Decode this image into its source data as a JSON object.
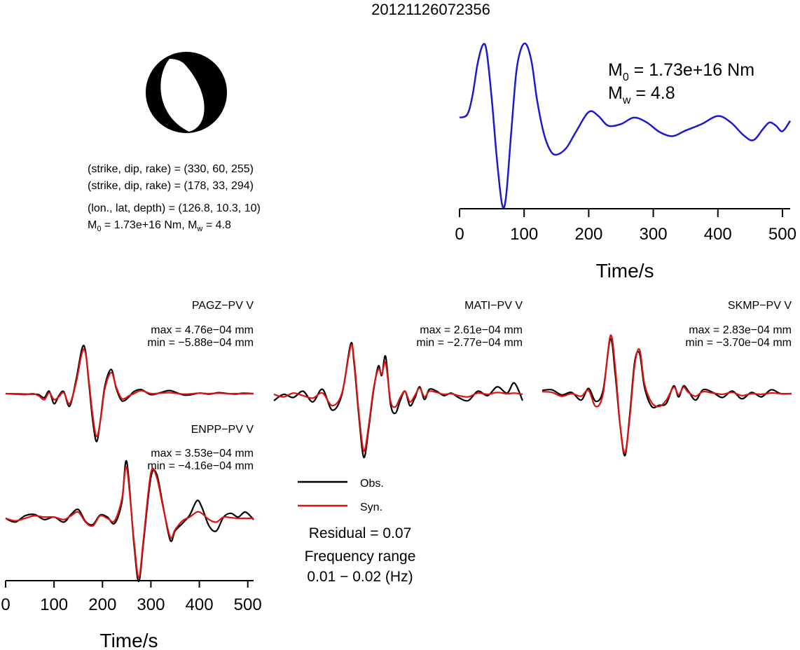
{
  "title": "20121126072356",
  "colors": {
    "observed": "#000000",
    "synthetic": "#dd1111",
    "stf": "#1a1ad0",
    "axis": "#000000"
  },
  "mechanism": {
    "plane1": "(strike, dip, rake) = (330, 60, 255)",
    "plane2": "(strike, dip, rake) = (178, 33, 294)",
    "location": "(lon., lat, depth) = (126.8, 10.3, 10)",
    "moment_prefix": "M",
    "moment_sub": "0",
    "moment_value": " = 1.73e+16 Nm, M",
    "mw_sub": "w",
    "mw_value": " = 4.8"
  },
  "stf": {
    "m0_prefix": "M",
    "m0_sub": "0",
    "m0_value": " = 1.73e+16 Nm",
    "mw_prefix": "M",
    "mw_sub": "w",
    "mw_value": " = 4.8",
    "xlabel": "Time/s"
  },
  "legend": {
    "obs": "Obs.",
    "syn": "Syn.",
    "residual": "Residual = 0.07",
    "freq_label": "Frequency range",
    "freq_value": "0.01 − 0.02 (Hz)"
  },
  "stations": [
    {
      "name": "PAGZ−PV V",
      "max": "max = 4.76e−04 mm",
      "min": "min = −5.88e−04 mm"
    },
    {
      "name": "MATI−PV V",
      "max": "max = 2.61e−04 mm",
      "min": "min = −2.77e−04 mm"
    },
    {
      "name": "SKMP−PV V",
      "max": "max = 2.83e−04 mm",
      "min": "min = −3.70e−04 mm"
    },
    {
      "name": "ENPP−PV V",
      "max": "max = 3.53e−04 mm",
      "min": "min = −4.16e−04 mm"
    }
  ],
  "wave_axis": {
    "xlabel": "Time/s"
  },
  "chart_data": [
    {
      "type": "line",
      "title": "",
      "xlabel": "Time/s",
      "xlim": [
        0,
        512
      ],
      "ylim": [
        -1.05,
        1.0
      ],
      "xticks": [
        0,
        100,
        200,
        300,
        400,
        500
      ],
      "series": [
        {
          "color": "#1a1ad0",
          "x": [
            0,
            12,
            20,
            28,
            36,
            42,
            50,
            58,
            66,
            72,
            80,
            88,
            96,
            104,
            112,
            120,
            130,
            140,
            150,
            165,
            180,
            200,
            215,
            230,
            250,
            270,
            290,
            310,
            330,
            350,
            375,
            400,
            420,
            440,
            455,
            470,
            480,
            490,
            500,
            512
          ],
          "y": [
            0.08,
            0.12,
            0.35,
            0.75,
            0.98,
            0.9,
            0.3,
            -0.45,
            -1.0,
            -0.9,
            -0.1,
            0.65,
            0.95,
            0.98,
            0.75,
            0.3,
            -0.1,
            -0.32,
            -0.38,
            -0.3,
            -0.1,
            0.15,
            0.1,
            -0.02,
            0.0,
            0.08,
            0.02,
            -0.1,
            -0.15,
            -0.08,
            0.0,
            0.1,
            0.02,
            -0.14,
            -0.2,
            -0.06,
            0.02,
            -0.02,
            -0.09,
            0.04
          ]
        }
      ]
    },
    {
      "type": "line",
      "title": "PAGZ−PV V",
      "xlim": [
        0,
        512
      ],
      "ylim": [
        -1,
        1
      ],
      "series": [
        {
          "name": "Obs.",
          "x": [
            0,
            40,
            55,
            68,
            80,
            90,
            100,
            110,
            120,
            132,
            145,
            158,
            165,
            172,
            180,
            188,
            196,
            205,
            218,
            228,
            238,
            245,
            255,
            265,
            280,
            300,
            320,
            340,
            370,
            400,
            420,
            440,
            460,
            475,
            490,
            512
          ],
          "y": [
            0,
            -0.01,
            -0.01,
            -0.02,
            -0.08,
            0.05,
            -0.2,
            -0.04,
            0.04,
            -0.25,
            0.25,
            0.9,
            0.84,
            0.2,
            -0.55,
            -0.95,
            -0.5,
            0.15,
            0.48,
            0.12,
            -0.12,
            -0.14,
            -0.06,
            0.04,
            0.08,
            -0.02,
            0.02,
            0.06,
            -0.03,
            0.01,
            -0.01,
            0.02,
            0.0,
            -0.01,
            0.01,
            0.0
          ]
        },
        {
          "name": "Syn.",
          "x": [
            0,
            40,
            55,
            68,
            80,
            90,
            100,
            110,
            120,
            132,
            145,
            158,
            165,
            172,
            180,
            188,
            196,
            205,
            218,
            228,
            238,
            245,
            255,
            265,
            280,
            300,
            320,
            340,
            370,
            400,
            420,
            440,
            460,
            475,
            490,
            512
          ],
          "y": [
            0,
            -0.02,
            0.0,
            -0.04,
            -0.12,
            0.02,
            -0.12,
            -0.06,
            0.02,
            -0.2,
            0.2,
            0.82,
            0.8,
            0.25,
            -0.45,
            -0.85,
            -0.52,
            0.1,
            0.42,
            0.14,
            -0.08,
            -0.1,
            -0.04,
            0.0,
            0.06,
            0.0,
            0.01,
            0.02,
            -0.01,
            0.01,
            0.0,
            0.01,
            0.0,
            0.0,
            0.0,
            0.0
          ]
        }
      ]
    },
    {
      "type": "line",
      "title": "MATI−PV V",
      "xlim": [
        0,
        512
      ],
      "ylim": [
        -1,
        1
      ],
      "series": [
        {
          "name": "Obs.",
          "x": [
            0,
            20,
            40,
            60,
            80,
            100,
            120,
            140,
            158,
            165,
            175,
            185,
            195,
            205,
            215,
            222,
            230,
            240,
            250,
            260,
            270,
            280,
            290,
            300,
            310,
            320,
            335,
            350,
            365,
            380,
            400,
            420,
            440,
            460,
            480,
            495,
            512
          ],
          "y": [
            -0.1,
            0.0,
            -0.05,
            0.05,
            -0.12,
            0.08,
            -0.25,
            0.0,
            0.8,
            0.5,
            -0.35,
            -1.0,
            -0.55,
            0.05,
            0.45,
            0.3,
            0.6,
            -0.15,
            -0.3,
            -0.1,
            0.05,
            -0.18,
            -0.06,
            0.12,
            -0.08,
            0.08,
            0.05,
            -0.02,
            0.02,
            -0.05,
            -0.1,
            0.05,
            -0.02,
            0.12,
            0.02,
            0.18,
            -0.1
          ]
        },
        {
          "name": "Syn.",
          "x": [
            0,
            20,
            40,
            60,
            80,
            100,
            120,
            140,
            158,
            165,
            175,
            185,
            195,
            205,
            215,
            222,
            230,
            240,
            250,
            260,
            270,
            280,
            290,
            300,
            310,
            320,
            335,
            350,
            365,
            380,
            400,
            420,
            440,
            460,
            480,
            495,
            512
          ],
          "y": [
            0.0,
            -0.04,
            0.02,
            -0.02,
            -0.06,
            0.02,
            -0.18,
            0.02,
            0.76,
            0.55,
            -0.3,
            -0.9,
            -0.5,
            0.08,
            0.4,
            0.32,
            0.5,
            -0.1,
            -0.2,
            -0.05,
            0.05,
            -0.12,
            -0.02,
            0.1,
            -0.04,
            0.05,
            0.03,
            0.0,
            0.01,
            -0.02,
            -0.04,
            0.02,
            0.0,
            0.03,
            0.01,
            0.02,
            0.0
          ]
        }
      ]
    },
    {
      "type": "line",
      "title": "SKMP−PV V",
      "xlim": [
        0,
        512
      ],
      "ylim": [
        -1,
        1
      ],
      "series": [
        {
          "name": "Obs.",
          "x": [
            0,
            20,
            40,
            60,
            80,
            95,
            110,
            125,
            140,
            150,
            160,
            170,
            180,
            190,
            200,
            210,
            225,
            240,
            255,
            270,
            280,
            290,
            300,
            315,
            330,
            350,
            370,
            390,
            410,
            430,
            450,
            470,
            490,
            512
          ],
          "y": [
            0.05,
            0.06,
            -0.02,
            0.02,
            -0.1,
            0.08,
            -0.12,
            0.05,
            0.85,
            0.3,
            -0.5,
            -0.96,
            -0.3,
            0.5,
            0.62,
            0.1,
            -0.2,
            -0.18,
            -0.15,
            0.12,
            -0.05,
            0.12,
            0.04,
            -0.1,
            0.06,
            0.02,
            -0.06,
            0.04,
            -0.08,
            0.02,
            -0.05,
            0.06,
            0.0,
            0.0
          ]
        },
        {
          "name": "Syn.",
          "x": [
            0,
            20,
            40,
            60,
            80,
            95,
            110,
            125,
            140,
            150,
            160,
            170,
            180,
            190,
            200,
            210,
            225,
            240,
            255,
            270,
            280,
            290,
            300,
            315,
            330,
            350,
            370,
            390,
            410,
            430,
            450,
            470,
            490,
            512
          ],
          "y": [
            0.03,
            0.02,
            -0.04,
            0.0,
            -0.04,
            0.05,
            -0.2,
            0.0,
            0.9,
            0.4,
            -0.5,
            -0.92,
            -0.35,
            0.45,
            0.68,
            0.15,
            -0.14,
            -0.2,
            -0.1,
            0.1,
            -0.02,
            0.1,
            0.02,
            -0.04,
            0.03,
            0.01,
            -0.01,
            0.02,
            -0.03,
            0.0,
            -0.01,
            0.01,
            0.0,
            0.0
          ]
        }
      ]
    },
    {
      "type": "line",
      "title": "ENPP−PV V",
      "xlabel": "Time/s",
      "xlim": [
        0,
        512
      ],
      "ylim": [
        -1,
        1
      ],
      "xticks": [
        0,
        100,
        200,
        300,
        400,
        500
      ],
      "series": [
        {
          "name": "Obs.",
          "x": [
            0,
            20,
            40,
            60,
            80,
            100,
            120,
            135,
            150,
            165,
            180,
            195,
            210,
            225,
            240,
            250,
            265,
            275,
            285,
            300,
            312,
            325,
            340,
            350,
            365,
            380,
            395,
            405,
            420,
            435,
            450,
            465,
            480,
            495,
            512
          ],
          "y": [
            0.0,
            -0.06,
            0.04,
            0.06,
            -0.02,
            0.02,
            -0.06,
            0.06,
            0.14,
            -0.05,
            -0.1,
            0.05,
            0.02,
            -0.08,
            0.25,
            0.9,
            -0.4,
            -1.0,
            -0.35,
            0.65,
            0.7,
            0.2,
            -0.35,
            -0.2,
            -0.08,
            0.05,
            0.28,
            0.18,
            -0.12,
            -0.2,
            0.02,
            0.08,
            0.02,
            0.1,
            -0.02
          ]
        },
        {
          "name": "Syn.",
          "x": [
            0,
            20,
            40,
            60,
            80,
            100,
            120,
            135,
            150,
            165,
            180,
            195,
            210,
            225,
            240,
            250,
            265,
            275,
            285,
            300,
            312,
            325,
            340,
            350,
            365,
            380,
            395,
            405,
            420,
            435,
            450,
            465,
            480,
            495,
            512
          ],
          "y": [
            0.0,
            -0.04,
            0.0,
            0.04,
            0.02,
            0.02,
            -0.02,
            0.04,
            0.1,
            -0.06,
            -0.12,
            0.04,
            0.0,
            -0.04,
            0.3,
            0.8,
            -0.35,
            -0.94,
            -0.3,
            0.72,
            0.65,
            0.18,
            -0.3,
            -0.18,
            -0.04,
            0.02,
            0.1,
            0.08,
            -0.02,
            -0.06,
            0.02,
            0.01,
            0.0,
            0.0,
            0.0
          ]
        }
      ]
    }
  ]
}
